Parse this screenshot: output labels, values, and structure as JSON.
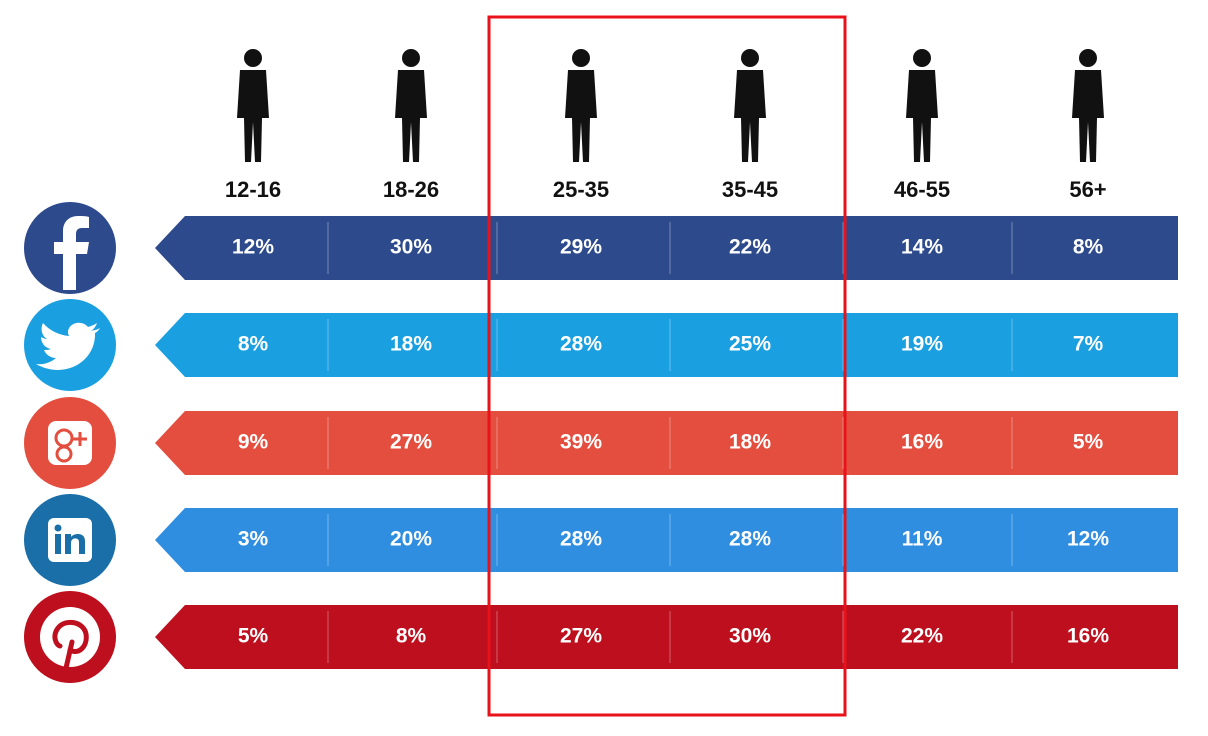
{
  "table": {
    "columns": [
      "12-16",
      "18-26",
      "25-35",
      "35-45",
      "46-55",
      "56+"
    ],
    "rows": [
      [
        "12%",
        "30%",
        "29%",
        "22%",
        "14%",
        "8%"
      ],
      [
        "8%",
        "18%",
        "28%",
        "25%",
        "19%",
        "7%"
      ],
      [
        "9%",
        "27%",
        "39%",
        "18%",
        "16%",
        "5%"
      ],
      [
        "3%",
        "20%",
        "28%",
        "28%",
        "11%",
        "12%"
      ],
      [
        "5%",
        "8%",
        "27%",
        "30%",
        "22%",
        "16%"
      ]
    ]
  }
}
